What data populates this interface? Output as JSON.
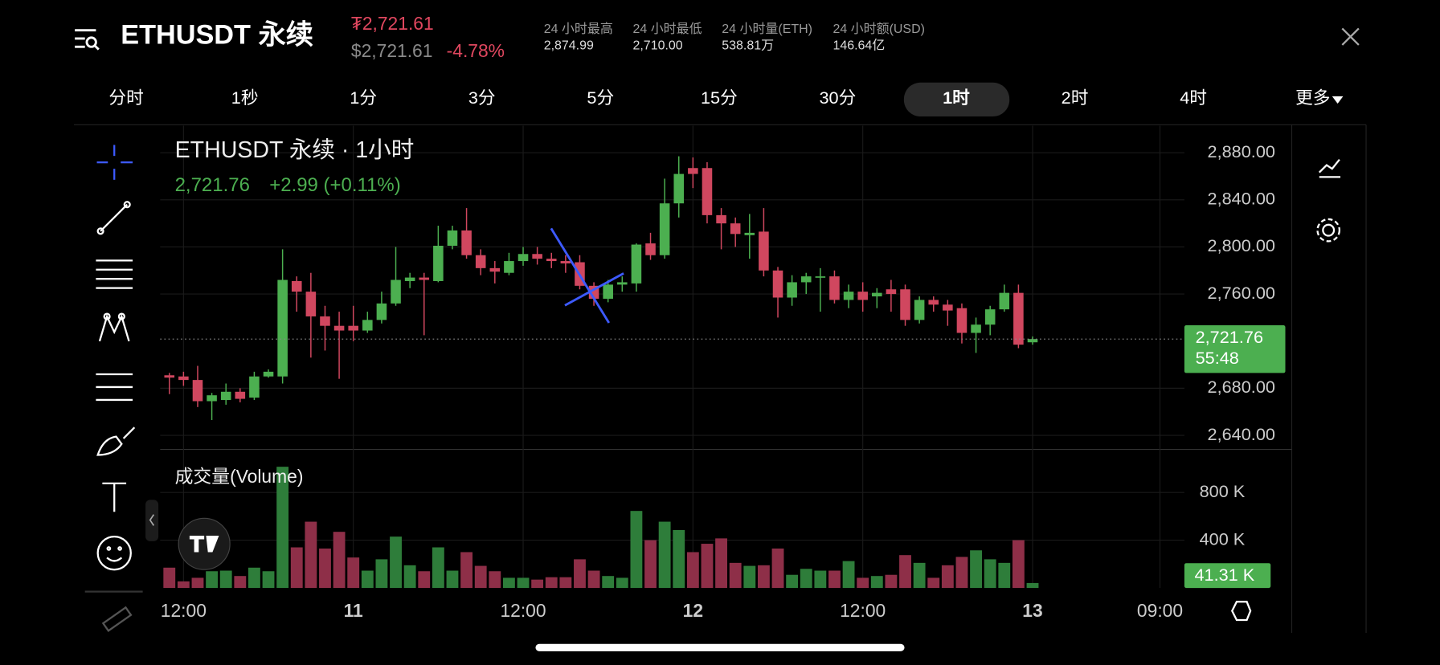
{
  "header": {
    "title": "ETHUSDT 永续",
    "price": "₮2,721.61",
    "usd_price": "$2,721.61",
    "change": "-4.78%",
    "stats": [
      {
        "label": "24 小时最高",
        "value": "2,874.99"
      },
      {
        "label": "24 小时最低",
        "value": "2,710.00"
      },
      {
        "label": "24 小时量(ETH)",
        "value": "538.81万"
      },
      {
        "label": "24 小时额(USD)",
        "value": "146.64亿"
      }
    ]
  },
  "timeframes": {
    "items": [
      "分时",
      "1秒",
      "1分",
      "3分",
      "5分",
      "15分",
      "30分",
      "1时",
      "2时",
      "4时",
      "更多"
    ],
    "active": "1时"
  },
  "chart": {
    "type": "candlestick",
    "title": "ETHUSDT 永续 · 1小时",
    "change": "+2.99 (+0.11%)",
    "countdown": "55:48",
    "last_price": {
      "value": 2721.76,
      "label": "2,721.76"
    },
    "up_color": "#4caf50",
    "down_color": "#d0475f",
    "open": [
      2691,
      2690,
      2687,
      2669,
      2670,
      2677,
      2672,
      2690,
      2690,
      2771,
      2762,
      2741,
      2733,
      2733,
      2729,
      2738,
      2752,
      2771,
      2774,
      2771,
      2801,
      2814,
      2793,
      2782,
      2778,
      2788,
      2794,
      2790,
      2788,
      2787,
      2767,
      2756,
      2768,
      2769,
      2803,
      2793,
      2837,
      2867,
      2867,
      2827,
      2820,
      2810,
      2813,
      2780,
      2757,
      2770,
      2774,
      2775,
      2755,
      2762,
      2758,
      2764,
      2764,
      2738,
      2755,
      2751,
      2748,
      2727,
      2734,
      2747,
      2761,
      2719
    ],
    "high": [
      2693,
      2694,
      2699,
      2676,
      2684,
      2680,
      2694,
      2696,
      2798,
      2775,
      2778,
      2750,
      2745,
      2750,
      2745,
      2762,
      2800,
      2778,
      2778,
      2818,
      2818,
      2833,
      2798,
      2788,
      2795,
      2800,
      2800,
      2795,
      2793,
      2793,
      2770,
      2772,
      2775,
      2803,
      2812,
      2858,
      2877,
      2876,
      2872,
      2833,
      2825,
      2828,
      2833,
      2783,
      2776,
      2778,
      2782,
      2780,
      2768,
      2770,
      2765,
      2772,
      2768,
      2758,
      2758,
      2755,
      2752,
      2740,
      2750,
      2768,
      2768,
      2724
    ],
    "low": [
      2675,
      2682,
      2664,
      2653,
      2666,
      2668,
      2670,
      2689,
      2684,
      2745,
      2706,
      2712,
      2688,
      2720,
      2727,
      2735,
      2750,
      2765,
      2725,
      2770,
      2798,
      2790,
      2776,
      2769,
      2776,
      2784,
      2785,
      2782,
      2778,
      2764,
      2750,
      2753,
      2762,
      2762,
      2789,
      2790,
      2825,
      2850,
      2820,
      2798,
      2800,
      2790,
      2775,
      2740,
      2750,
      2760,
      2745,
      2752,
      2748,
      2745,
      2748,
      2745,
      2733,
      2735,
      2745,
      2733,
      2718,
      2710,
      2725,
      2745,
      2714,
      2717
    ],
    "close": [
      2689,
      2687,
      2669,
      2674,
      2677,
      2671,
      2690,
      2694,
      2772,
      2762,
      2741,
      2733,
      2729,
      2729,
      2738,
      2752,
      2772,
      2774,
      2772,
      2801,
      2814,
      2793,
      2782,
      2779,
      2788,
      2794,
      2790,
      2788,
      2786,
      2767,
      2756,
      2768,
      2770,
      2802,
      2793,
      2837,
      2862,
      2862,
      2827,
      2820,
      2811,
      2812,
      2780,
      2757,
      2770,
      2775,
      2775,
      2755,
      2762,
      2755,
      2761,
      2760,
      2738,
      2755,
      2751,
      2746,
      2727,
      2734,
      2747,
      2761,
      2717,
      2721.76
    ],
    "ylim": [
      2628,
      2903
    ],
    "yticks": [
      {
        "value": 2880,
        "label": "2,880.00"
      },
      {
        "value": 2840,
        "label": "2,840.00"
      },
      {
        "value": 2800,
        "label": "2,800.00"
      },
      {
        "value": 2760,
        "label": "2,760.00"
      },
      {
        "value": 2680,
        "label": "2,680.00"
      },
      {
        "value": 2640,
        "label": "2,640.00"
      }
    ],
    "xticks": [
      {
        "value": 1,
        "label": "12:00"
      },
      {
        "value": 13,
        "label": "11"
      },
      {
        "value": 25,
        "label": "12:00"
      },
      {
        "value": 37,
        "label": "12"
      },
      {
        "value": 49,
        "label": "12:00"
      },
      {
        "value": 61,
        "label": "13"
      },
      {
        "value": 70,
        "label": "09:00"
      }
    ],
    "volume": {
      "title": "成交量(Volume)",
      "up_color": "#2e7d3a",
      "down_color": "#8e2f48",
      "values": [
        170,
        55,
        85,
        140,
        145,
        100,
        170,
        140,
        1015,
        340,
        555,
        330,
        470,
        255,
        145,
        240,
        430,
        190,
        140,
        340,
        145,
        300,
        185,
        140,
        85,
        85,
        70,
        90,
        90,
        240,
        145,
        100,
        85,
        645,
        400,
        555,
        485,
        300,
        370,
        415,
        210,
        185,
        190,
        330,
        110,
        160,
        145,
        145,
        225,
        85,
        100,
        110,
        275,
        210,
        85,
        190,
        260,
        315,
        240,
        210,
        400,
        41.31
      ],
      "ylim": [
        0,
        1160
      ],
      "yticks": [
        {
          "value": 800,
          "label": "800 K"
        },
        {
          "value": 400,
          "label": "400 K"
        }
      ],
      "last": {
        "value": 41.31,
        "label": "41.31 K"
      }
    }
  }
}
